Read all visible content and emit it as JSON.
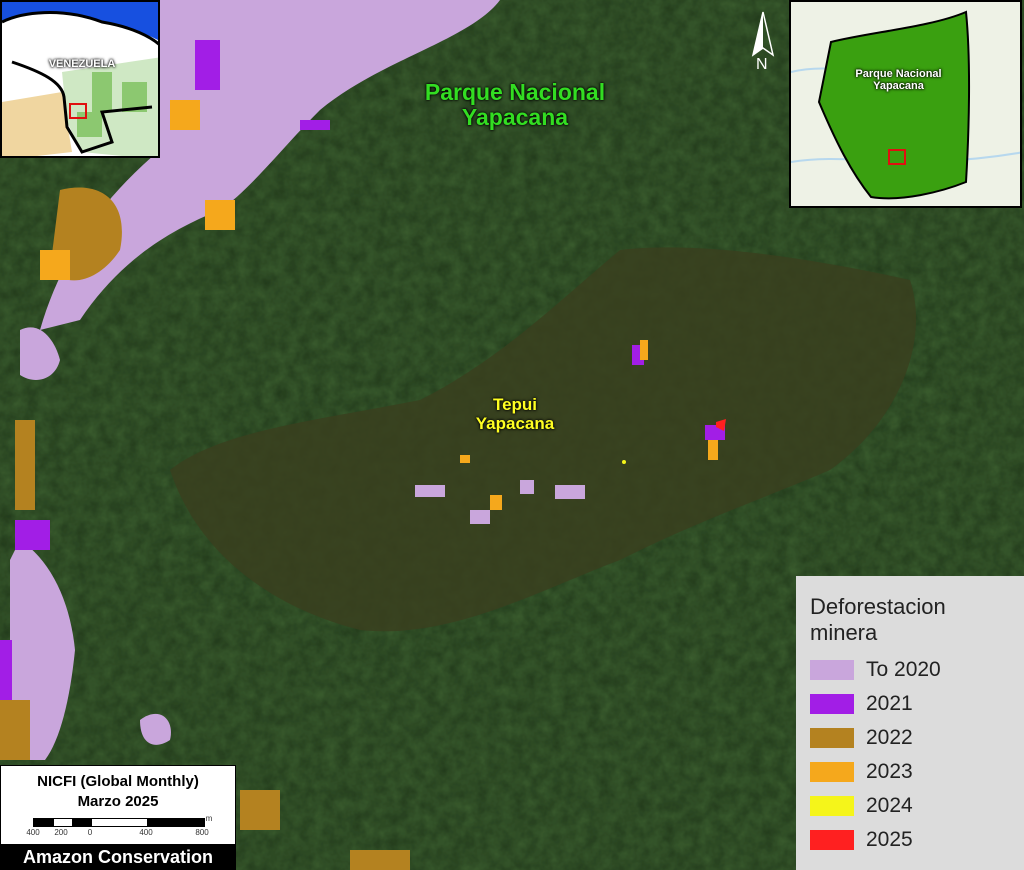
{
  "map": {
    "park_label": "Parque Nacional\nYapacana",
    "tepui_label": "Tepui\nYapacana",
    "north_label": "N"
  },
  "inset_country": {
    "label": "VENEZUELA"
  },
  "inset_park": {
    "label": "Parque Nacional\nYapacana"
  },
  "legend": {
    "title": "Deforestacion\nminera",
    "items": [
      {
        "label": "To 2020",
        "color": "#c9a6dc"
      },
      {
        "label": "2021",
        "color": "#a21ee6"
      },
      {
        "label": "2022",
        "color": "#b48220"
      },
      {
        "label": "2023",
        "color": "#f5a81c"
      },
      {
        "label": "2024",
        "color": "#f5f51a"
      },
      {
        "label": "2025",
        "color": "#ff2020"
      }
    ]
  },
  "scale": {
    "title": "NICFI (Global Monthly)",
    "subtitle": "Marzo 2025",
    "unit": "m",
    "ticks": [
      "400",
      "200",
      "0",
      "400",
      "800"
    ]
  },
  "credit": "Amazon Conservation",
  "colors": {
    "park_label": "#33dd22",
    "tepui_label": "#ffff22",
    "forest": "#1f3814",
    "park_fill": "#3aa010",
    "box": "#e01010"
  }
}
